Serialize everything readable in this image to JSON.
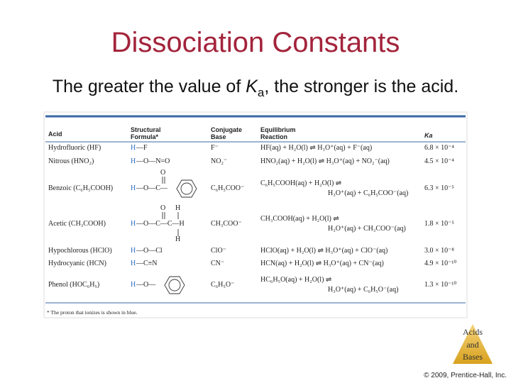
{
  "title": "Dissociation Constants",
  "subtitle": [
    "The greater the value of ",
    "K",
    "a",
    ", the stronger is the acid."
  ],
  "table": {
    "headers": {
      "acid": "Acid",
      "structure": [
        "Structural",
        "Formula*"
      ],
      "base": [
        "Conjugate",
        "Base"
      ],
      "reaction": [
        "Equilibrium",
        "Reaction"
      ],
      "ka": "Ka"
    },
    "rows": [
      {
        "acid": "Hydrofluoric (HF)",
        "proton": "H",
        "structure": "—F",
        "base": "F⁻",
        "reaction": [
          "HF(aq) + H₂O(l) ⇌ H₃O⁺(aq) + F⁻(aq)"
        ],
        "ka": "6.8 × 10⁻⁴"
      },
      {
        "acid": "Nitrous (HNO₂)",
        "proton": "H",
        "structure": "—O—N=O",
        "base": "NO₂⁻",
        "reaction": [
          "HNO₂(aq) + H₂O(l) ⇌ H₃O⁺(aq) + NO₂⁻(aq)"
        ],
        "ka": "4.5 × 10⁻⁴"
      },
      {
        "acid": "Benzoic (C₆H₅COOH)",
        "proton": "H",
        "structure": "—O—C—",
        "above": [
          "O"
        ],
        "base": "C₆H₅COO⁻",
        "reaction": [
          "C₆H₅COOH(aq) + H₂O(l) ⇌",
          "H₃O⁺(aq) + C₆H₅COO⁻(aq)"
        ],
        "ka": "6.3 × 10⁻⁵"
      },
      {
        "acid": "Acetic (CH₃COOH)",
        "proton": "H",
        "structure": "—O—C—C—H",
        "above": [
          "O",
          "H"
        ],
        "below": [
          "H"
        ],
        "base": "CH₃COO⁻",
        "reaction": [
          "CH₃COOH(aq) + H₂O(l) ⇌",
          "H₃O⁺(aq) + CH₃COO⁻(aq)"
        ],
        "ka": "1.8 × 10⁻⁵"
      },
      {
        "acid": "Hypochlorous (HClO)",
        "proton": "H",
        "structure": "—O—Cl",
        "base": "ClO⁻",
        "reaction": [
          "HClO(aq) + H₂O(l) ⇌ H₃O⁺(aq) + ClO⁻(aq)"
        ],
        "ka": "3.0 × 10⁻⁸"
      },
      {
        "acid": "Hydrocyanic (HCN)",
        "proton": "H",
        "structure": "—C≡N",
        "base": "CN⁻",
        "reaction": [
          "HCN(aq) + H₂O(l) ⇌ H₃O⁺(aq) + CN⁻(aq)"
        ],
        "ka": "4.9 × 10⁻¹⁰"
      },
      {
        "acid": "Phenol (HOC₆H₅)",
        "proton": "H",
        "structure": "—O—",
        "base": "C₆H₅O⁻",
        "reaction": [
          "HC₆H₅O(aq) + H₂O(l) ⇌",
          "H₃O⁺(aq) + C₆H₅O⁻(aq)"
        ],
        "ka": "1.3 × 10⁻¹⁰"
      }
    ],
    "footnote": "* The proton that ionizes is shown in blue."
  },
  "badge": [
    "Acids",
    "and",
    "Bases"
  ],
  "copyright": "© 2009, Prentice-Hall, Inc."
}
